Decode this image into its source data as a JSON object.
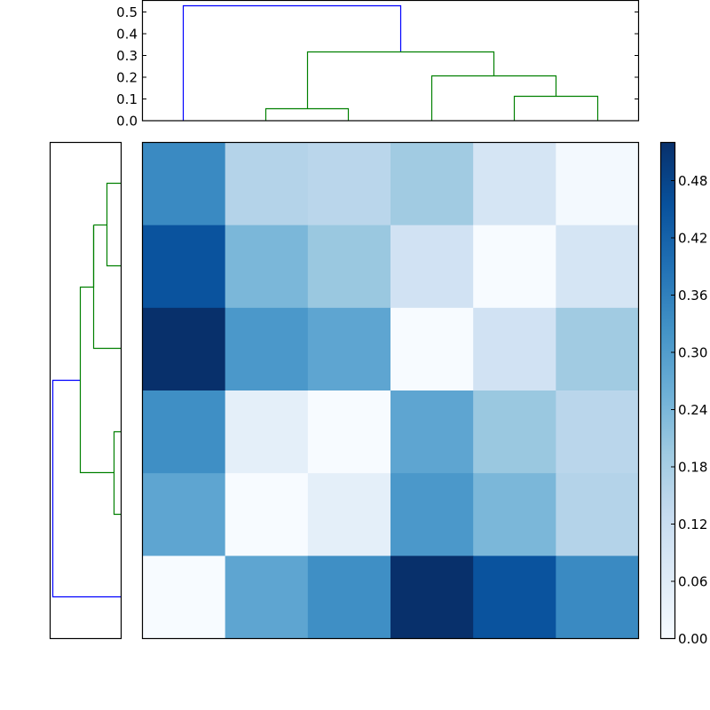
{
  "chart_data": {
    "type": "heatmap",
    "title": "",
    "description": "Clustered distance matrix heatmap with row and column dendrograms and colorbar",
    "colormap": "Blues",
    "rows": 6,
    "cols": 6,
    "values": [
      [
        0.34,
        0.16,
        0.15,
        0.19,
        0.09,
        0.01
      ],
      [
        0.45,
        0.24,
        0.2,
        0.1,
        0.0,
        0.09
      ],
      [
        0.52,
        0.31,
        0.28,
        0.0,
        0.1,
        0.19
      ],
      [
        0.33,
        0.05,
        0.0,
        0.28,
        0.2,
        0.15
      ],
      [
        0.28,
        0.0,
        0.05,
        0.31,
        0.24,
        0.16
      ],
      [
        0.0,
        0.28,
        0.33,
        0.52,
        0.45,
        0.34
      ]
    ],
    "vmin": 0.0,
    "vmax": 0.52,
    "colorbar": {
      "ticks": [
        0.0,
        0.06,
        0.12,
        0.18,
        0.24,
        0.3,
        0.36,
        0.42,
        0.48
      ],
      "tick_labels": [
        "0.00",
        "0.06",
        "0.12",
        "0.18",
        "0.24",
        "0.30",
        "0.36",
        "0.42",
        "0.48"
      ]
    },
    "top_dendrogram": {
      "ylim": [
        0.0,
        0.55
      ],
      "yticks": [
        0.0,
        0.1,
        0.2,
        0.3,
        0.4,
        0.5
      ],
      "ytick_labels": [
        "0.0",
        "0.1",
        "0.2",
        "0.3",
        "0.4",
        "0.5"
      ],
      "links": [
        {
          "left_x": 0,
          "right_x": 3.6,
          "height": 0.53,
          "color": "#0000ff"
        },
        {
          "left_x": 1.5,
          "right_x": 4.5,
          "height": 0.32,
          "color": "#008000"
        },
        {
          "left_x": 3.5,
          "right_x": 5.0,
          "height": 0.21,
          "color": "#008000"
        },
        {
          "left_x": 4.5,
          "right_x": 5.5,
          "height": 0.11,
          "color": "#008000"
        },
        {
          "left_x": 1.0,
          "right_x": 2.0,
          "height": 0.06,
          "color": "#008000"
        }
      ]
    },
    "left_dendrogram": {
      "orientation": "left",
      "links": [
        {
          "top_y": 2.9,
          "bottom_y": 5.5,
          "height": 0.53,
          "color": "#0000ff"
        },
        {
          "top_y": 1.75,
          "bottom_y": 4.0,
          "height": 0.32,
          "color": "#008000"
        },
        {
          "top_y": 1.0,
          "bottom_y": 2.5,
          "height": 0.21,
          "color": "#008000"
        },
        {
          "top_y": 0.5,
          "bottom_y": 1.5,
          "height": 0.11,
          "color": "#008000"
        },
        {
          "top_y": 3.5,
          "bottom_y": 4.5,
          "height": 0.06,
          "color": "#008000"
        }
      ]
    },
    "xlabel": "",
    "ylabel": ""
  },
  "colors": {
    "cluster_main": "#0000ff",
    "cluster_sub": "#008000",
    "axis": "#000000"
  }
}
